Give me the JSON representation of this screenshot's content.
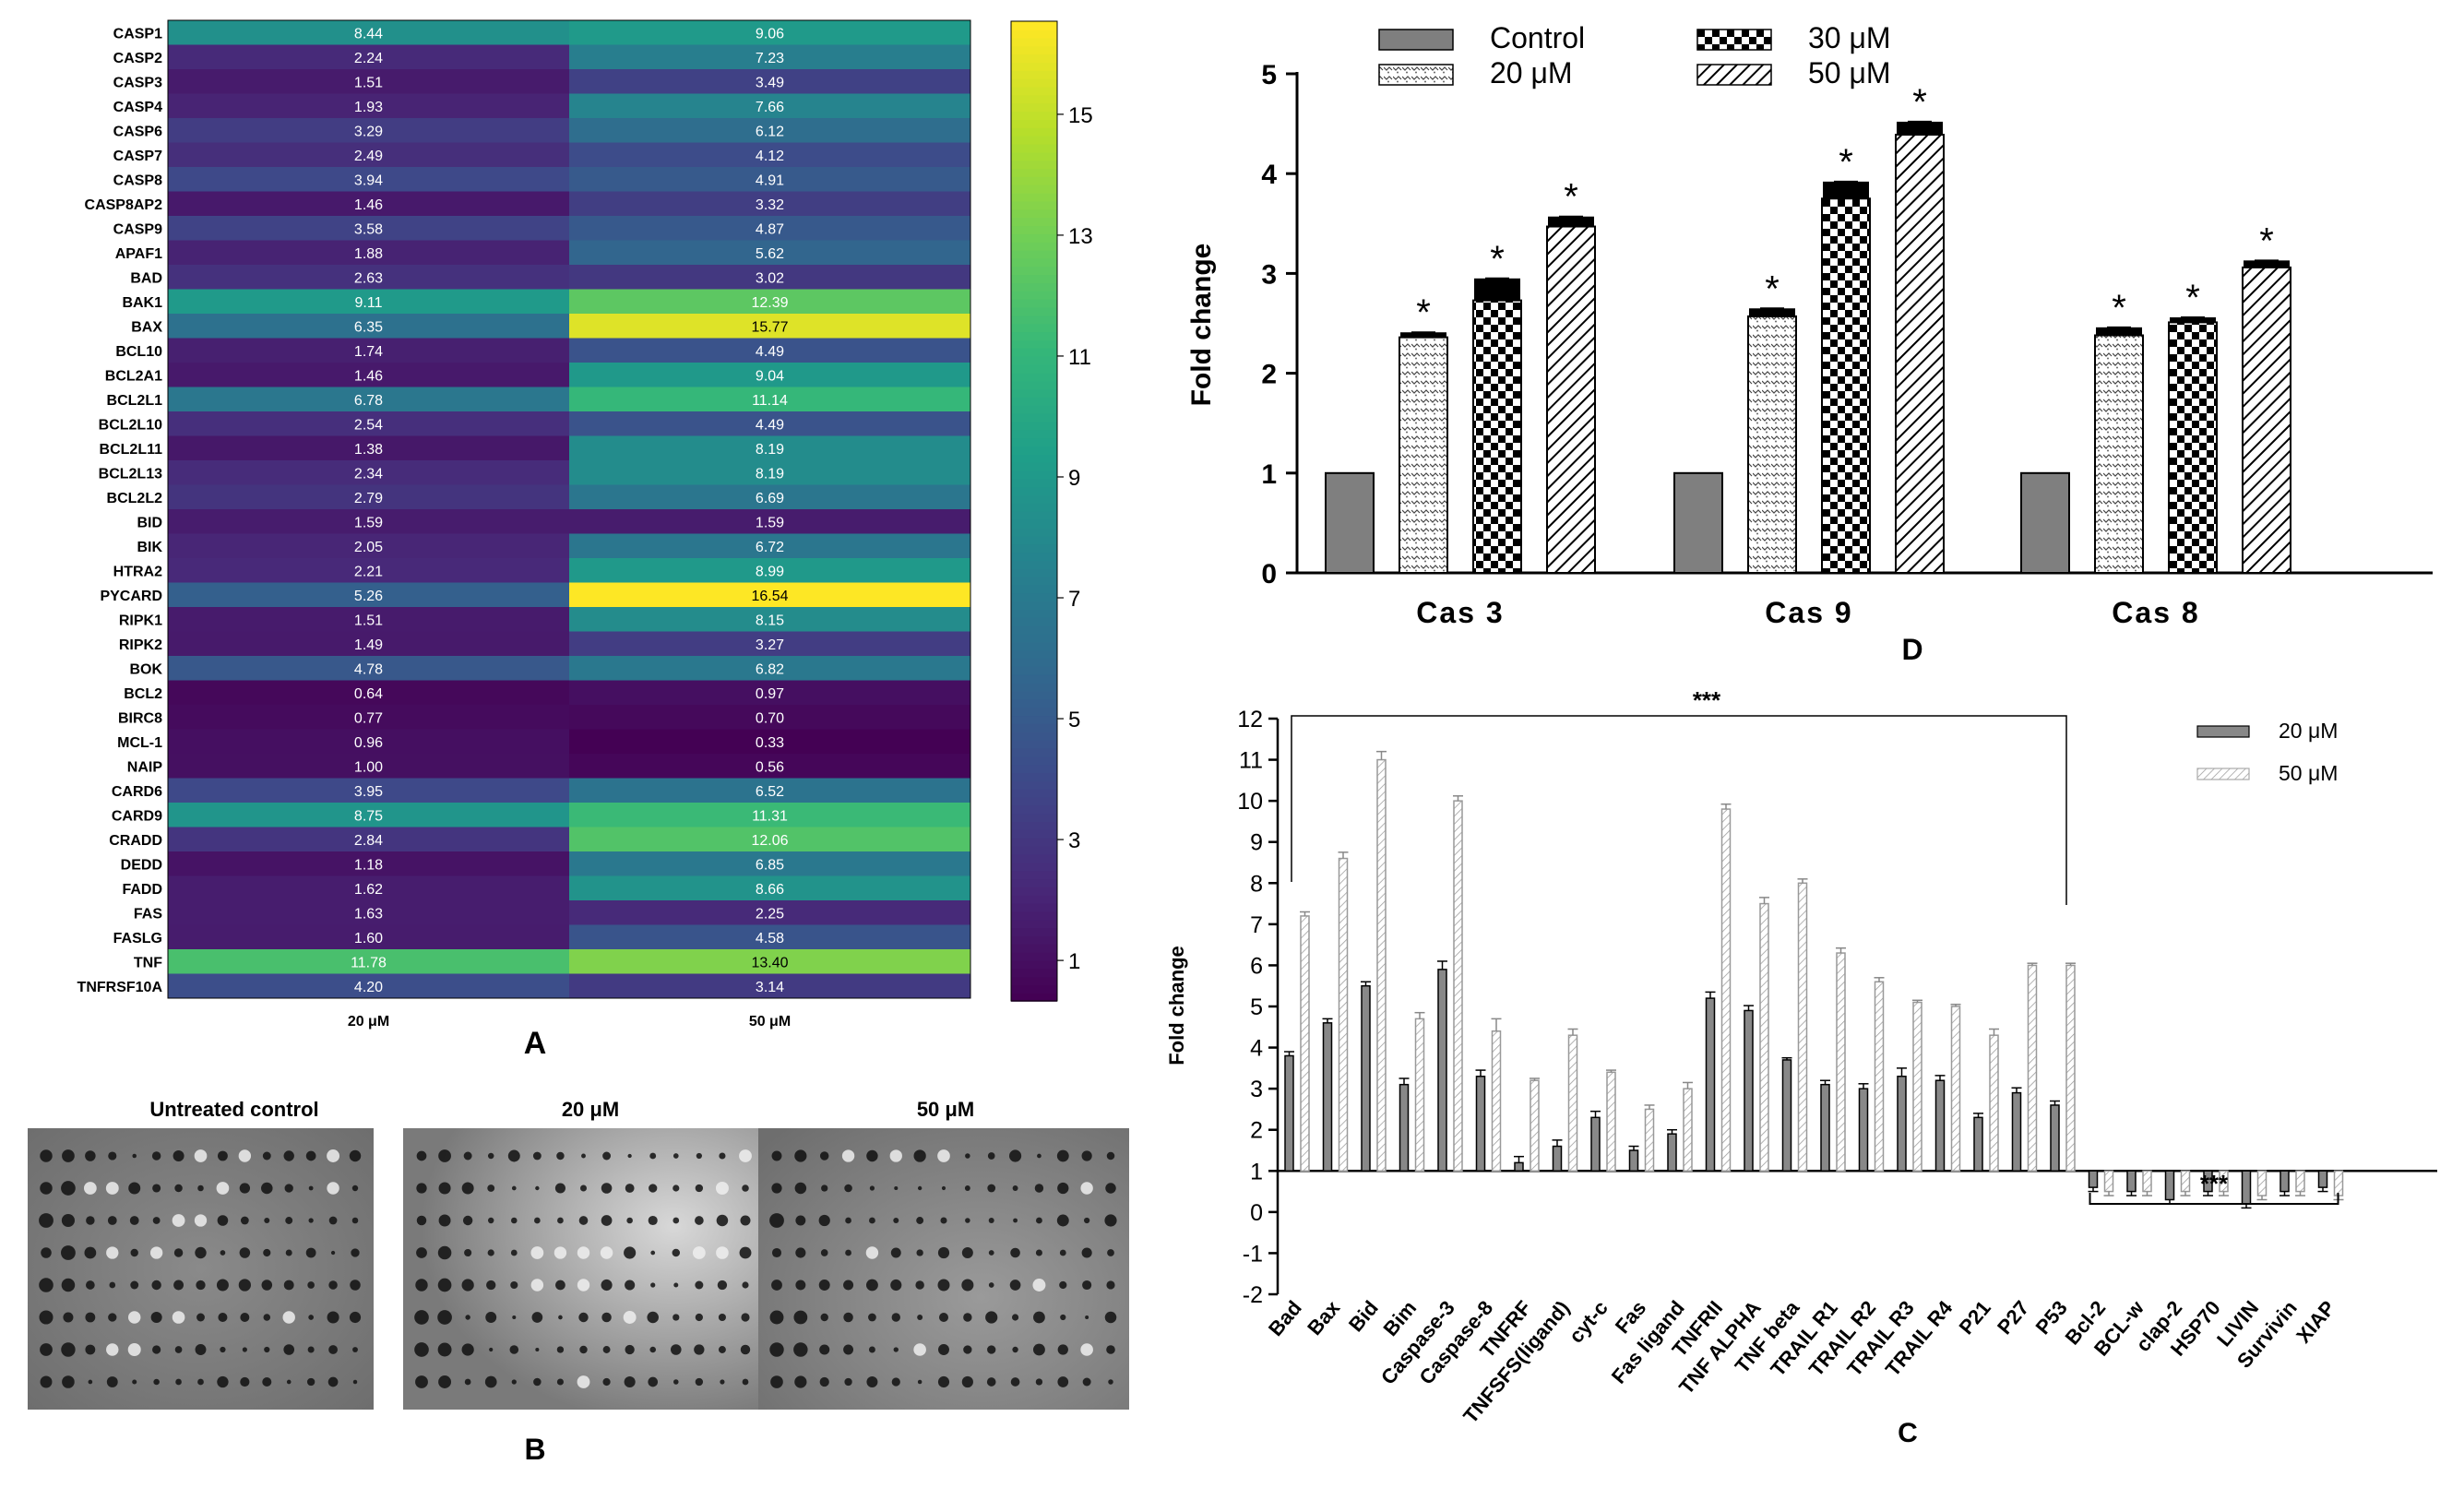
{
  "panel_labels": {
    "A": "A",
    "B": "B",
    "C": "C",
    "D": "D"
  },
  "colors": {
    "viridis": [
      "#440154",
      "#482878",
      "#3e4989",
      "#31688e",
      "#26828e",
      "#1f9e89",
      "#35b779",
      "#6ece58",
      "#b5de2b",
      "#fde725"
    ],
    "control_fill": "#7f7f7f",
    "bar_edge": "#000000",
    "bar_c_light": "#c8c8c8"
  },
  "chart_data": [
    {
      "type": "heatmap",
      "title": "",
      "rows": [
        "CASP1",
        "CASP2",
        "CASP3",
        "CASP4",
        "CASP6",
        "CASP7",
        "CASP8",
        "CASP8AP2",
        "CASP9",
        "APAF1",
        "BAD",
        "BAK1",
        "BAX",
        "BCL10",
        "BCL2A1",
        "BCL2L1",
        "BCL2L10",
        "BCL2L11",
        "BCL2L13",
        "BCL2L2",
        "BID",
        "BIK",
        "HTRA2",
        "PYCARD",
        "RIPK1",
        "RIPK2",
        "BOK",
        "BCL2",
        "BIRC8",
        "MCL-1",
        "NAIP",
        "CARD6",
        "CARD9",
        "CRADD",
        "DEDD",
        "FADD",
        "FAS",
        "FASLG",
        "TNF",
        "TNFRSF10A"
      ],
      "columns": [
        "20 μM",
        "50 μM"
      ],
      "values": [
        [
          "8.44",
          "9.06"
        ],
        [
          "2.24",
          "7.23"
        ],
        [
          "1.51",
          "3.49"
        ],
        [
          "1.93",
          "7.66"
        ],
        [
          "3.29",
          "6.12"
        ],
        [
          "2.49",
          "4.12"
        ],
        [
          "3.94",
          "4.91"
        ],
        [
          "1.46",
          "3.32"
        ],
        [
          "3.58",
          "4.87"
        ],
        [
          "1.88",
          "5.62"
        ],
        [
          "2.63",
          "3.02"
        ],
        [
          "9.11",
          "12.39"
        ],
        [
          "6.35",
          "15.77"
        ],
        [
          "1.74",
          "4.49"
        ],
        [
          "1.46",
          "9.04"
        ],
        [
          "6.78",
          "11.14"
        ],
        [
          "2.54",
          "4.49"
        ],
        [
          "1.38",
          "8.19"
        ],
        [
          "2.34",
          "8.19"
        ],
        [
          "2.79",
          "6.69"
        ],
        [
          "1.59",
          "1.59"
        ],
        [
          "2.05",
          "6.72"
        ],
        [
          "2.21",
          "8.99"
        ],
        [
          "5.26",
          "16.54"
        ],
        [
          "1.51",
          "8.15"
        ],
        [
          "1.49",
          "3.27"
        ],
        [
          "4.78",
          "6.82"
        ],
        [
          "0.64",
          "0.97"
        ],
        [
          "0.77",
          "0.70"
        ],
        [
          "0.96",
          "0.33"
        ],
        [
          "1.00",
          "0.56"
        ],
        [
          "3.95",
          "6.52"
        ],
        [
          "8.75",
          "11.31"
        ],
        [
          "2.84",
          "12.06"
        ],
        [
          "1.18",
          "6.85"
        ],
        [
          "1.62",
          "8.66"
        ],
        [
          "1.63",
          "2.25"
        ],
        [
          "1.60",
          "4.58"
        ],
        [
          "11.78",
          "13.40"
        ],
        [
          "4.20",
          "3.14"
        ]
      ],
      "colorbar_ticks": [
        "1",
        "3",
        "5",
        "7",
        "9",
        "11",
        "13",
        "15"
      ],
      "colorbar_range": [
        0.33,
        16.54
      ]
    },
    {
      "type": "bar",
      "panel": "D",
      "ylabel": "Fold change",
      "categories": [
        "Cas 3",
        "Cas 9",
        "Cas 8"
      ],
      "ylim": [
        0,
        5
      ],
      "yticks": [
        "0",
        "1",
        "2",
        "3",
        "4",
        "5"
      ],
      "series": [
        {
          "name": "Control",
          "values": [
            1.0,
            1.0,
            1.0
          ],
          "errors": [
            0,
            0,
            0
          ],
          "sig": [
            "",
            "",
            ""
          ]
        },
        {
          "name": "20 μM",
          "values": [
            2.36,
            2.57,
            2.38
          ],
          "errors": [
            0.05,
            0.08,
            0.08
          ],
          "sig": [
            "*",
            "*",
            "*"
          ]
        },
        {
          "name": "30 μM",
          "values": [
            2.73,
            3.75,
            2.51
          ],
          "errors": [
            0.22,
            0.17,
            0.05
          ],
          "sig": [
            "*",
            "*",
            "*"
          ]
        },
        {
          "name": "50 μM",
          "values": [
            3.47,
            4.39,
            3.06
          ],
          "errors": [
            0.1,
            0.13,
            0.07
          ],
          "sig": [
            "*",
            "*",
            "*"
          ]
        }
      ]
    },
    {
      "type": "bar",
      "panel": "C",
      "ylabel": "Fold change",
      "categories": [
        "Bad",
        "Bax",
        "Bid",
        "Bim",
        "Caspase-3",
        "Caspase-8",
        "TNFRF",
        "TNFSFS(ligand)",
        "cyt-c",
        "Fas",
        "Fas ligand",
        "TNFRII",
        "TNF ALPHA",
        "TNF beta",
        "TRAIL R1",
        "TRAIL R2",
        "TRAIL R3",
        "TRAIL R4",
        "P21",
        "P27",
        "P53",
        "Bcl-2",
        "BCL-w",
        "clap-2",
        "HSP70",
        "LIVIN",
        "Survivin",
        "XIAP"
      ],
      "ylim": [
        -2,
        12
      ],
      "yticks": [
        "-2",
        "-1",
        "0",
        "1",
        "2",
        "3",
        "4",
        "5",
        "6",
        "7",
        "8",
        "9",
        "10",
        "11",
        "12"
      ],
      "series": [
        {
          "name": "20 μM",
          "values": [
            3.8,
            4.6,
            5.5,
            3.1,
            5.9,
            3.3,
            1.2,
            1.6,
            2.3,
            1.5,
            1.9,
            5.2,
            4.9,
            3.7,
            3.1,
            3.0,
            3.3,
            3.2,
            2.3,
            2.9,
            2.6,
            0.6,
            0.5,
            0.3,
            0.5,
            0.2,
            0.5,
            0.6
          ],
          "errors": [
            0.1,
            0.1,
            0.1,
            0.15,
            0.2,
            0.15,
            0.15,
            0.15,
            0.15,
            0.1,
            0.1,
            0.15,
            0.12,
            0.05,
            0.1,
            0.12,
            0.2,
            0.12,
            0.1,
            0.12,
            0.1,
            0.1,
            0.1,
            0.1,
            0.1,
            0.1,
            0.1,
            0.1
          ]
        },
        {
          "name": "50 μM",
          "values": [
            7.2,
            8.6,
            11.0,
            4.7,
            10.0,
            4.4,
            3.2,
            4.3,
            3.4,
            2.5,
            3.0,
            9.8,
            7.5,
            8.0,
            6.3,
            5.6,
            5.1,
            5.0,
            4.3,
            6.0,
            6.0,
            0.5,
            0.5,
            0.5,
            0.5,
            0.4,
            0.5,
            0.4
          ],
          "errors": [
            0.1,
            0.15,
            0.2,
            0.15,
            0.12,
            0.3,
            0.05,
            0.15,
            0.05,
            0.1,
            0.15,
            0.12,
            0.15,
            0.1,
            0.12,
            0.1,
            0.05,
            0.05,
            0.15,
            0.05,
            0.05,
            0.1,
            0.1,
            0.1,
            0.1,
            0.1,
            0.1,
            0.1
          ]
        }
      ],
      "annotations": [
        {
          "label": "***",
          "span": [
            "Bad",
            "P53"
          ],
          "position": "top"
        },
        {
          "label": "***",
          "span": [
            "Bcl-2",
            "XIAP"
          ],
          "position": "below zero"
        }
      ]
    }
  ],
  "blots": {
    "titles": [
      "Untreated control",
      "20 μM",
      "50 μM"
    ]
  }
}
